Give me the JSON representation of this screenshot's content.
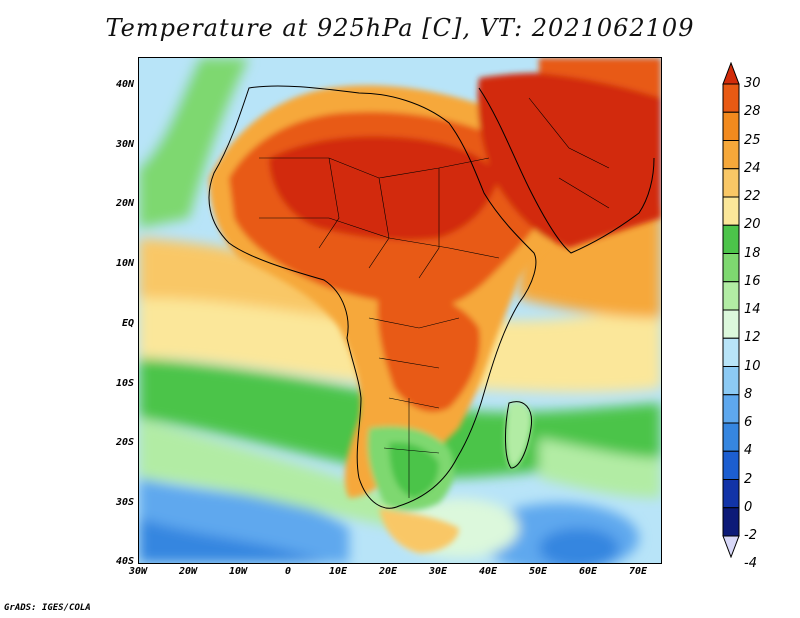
{
  "title": "Temperature at 925hPa [C], VT: 2021062109",
  "credit": "GrADS: IGES/COLA",
  "map": {
    "region": "Africa",
    "lon_range": [
      -30,
      75
    ],
    "lat_range": [
      -40,
      45
    ],
    "lat_ticks": [
      "40N",
      "30N",
      "20N",
      "10N",
      "EQ",
      "10S",
      "20S",
      "30S",
      "40S"
    ],
    "lon_ticks": [
      "30W",
      "20W",
      "10W",
      "0",
      "10E",
      "20E",
      "30E",
      "40E",
      "50E",
      "60E",
      "70E"
    ]
  },
  "colorbar": {
    "labels": [
      "30",
      "28",
      "25",
      "24",
      "22",
      "20",
      "18",
      "16",
      "14",
      "12",
      "10",
      "8",
      "6",
      "4",
      "2",
      "0",
      "-2",
      "-4"
    ],
    "colors": [
      "#d22c0a",
      "#e85a14",
      "#f28a1e",
      "#f6a83a",
      "#f9c766",
      "#fbe79a",
      "#4cc44a",
      "#7ed870",
      "#b2eca4",
      "#dcf8dc",
      "#b8e4f8",
      "#8ccaf4",
      "#5ea8ee",
      "#3686e0",
      "#1c5ed0",
      "#1234a8",
      "#0c1a78",
      "#d8d8f8"
    ]
  }
}
